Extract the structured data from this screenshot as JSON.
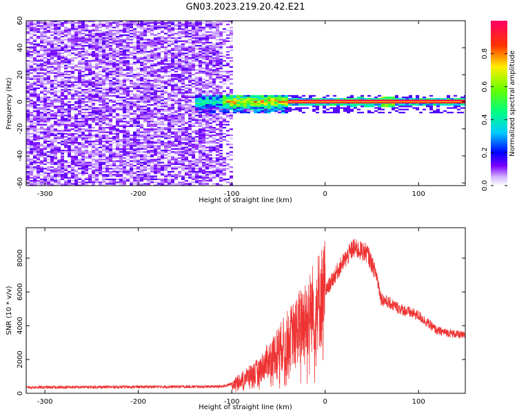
{
  "title": "GN03.2023.219.20.42.E21",
  "chart_data": [
    {
      "type": "heatmap",
      "xlabel": "Height of straight line (km)",
      "ylabel": "Frequency (Hz)",
      "xlim": [
        -320,
        150
      ],
      "ylim": [
        -62,
        60
      ],
      "xticks": [
        -300,
        -200,
        -100,
        0,
        100
      ],
      "yticks": [
        -60,
        -40,
        -20,
        0,
        20,
        40,
        60
      ],
      "colorbar": {
        "label": "Normalized spectral amplitude",
        "range": [
          0,
          1
        ],
        "ticks": [
          0.0,
          0.2,
          0.4,
          0.6,
          0.8
        ]
      },
      "regions": [
        {
          "name": "broadband noise",
          "x": [
            -320,
            -100
          ],
          "y": [
            -62,
            60
          ],
          "amplitude": 0.1
        },
        {
          "name": "low-frequency signal",
          "x": [
            -140,
            150
          ],
          "y": [
            -8,
            5
          ],
          "amplitude_peak": 1.0,
          "center_y": 0
        }
      ],
      "grid": false
    },
    {
      "type": "line",
      "xlabel": "Height of straight line (km)",
      "ylabel": "SNR (10 * v/v)",
      "xlim": [
        -320,
        150
      ],
      "ylim": [
        0,
        9800
      ],
      "xticks": [
        -300,
        -200,
        -100,
        0,
        100
      ],
      "yticks": [
        0,
        2000,
        4000,
        6000,
        8000
      ],
      "color": "#ee3333",
      "envelope": [
        {
          "x": -320,
          "y": 350
        },
        {
          "x": -200,
          "y": 380
        },
        {
          "x": -110,
          "y": 400
        },
        {
          "x": -95,
          "y": 650
        },
        {
          "x": -70,
          "y": 1400
        },
        {
          "x": -40,
          "y": 3200
        },
        {
          "x": -20,
          "y": 4500
        },
        {
          "x": 0,
          "y": 6000
        },
        {
          "x": 15,
          "y": 7400
        },
        {
          "x": 30,
          "y": 8600
        },
        {
          "x": 45,
          "y": 8300
        },
        {
          "x": 55,
          "y": 7000
        },
        {
          "x": 60,
          "y": 5600
        },
        {
          "x": 80,
          "y": 5000
        },
        {
          "x": 100,
          "y": 4600
        },
        {
          "x": 120,
          "y": 3700
        },
        {
          "x": 150,
          "y": 3400
        }
      ],
      "grid": false
    }
  ]
}
